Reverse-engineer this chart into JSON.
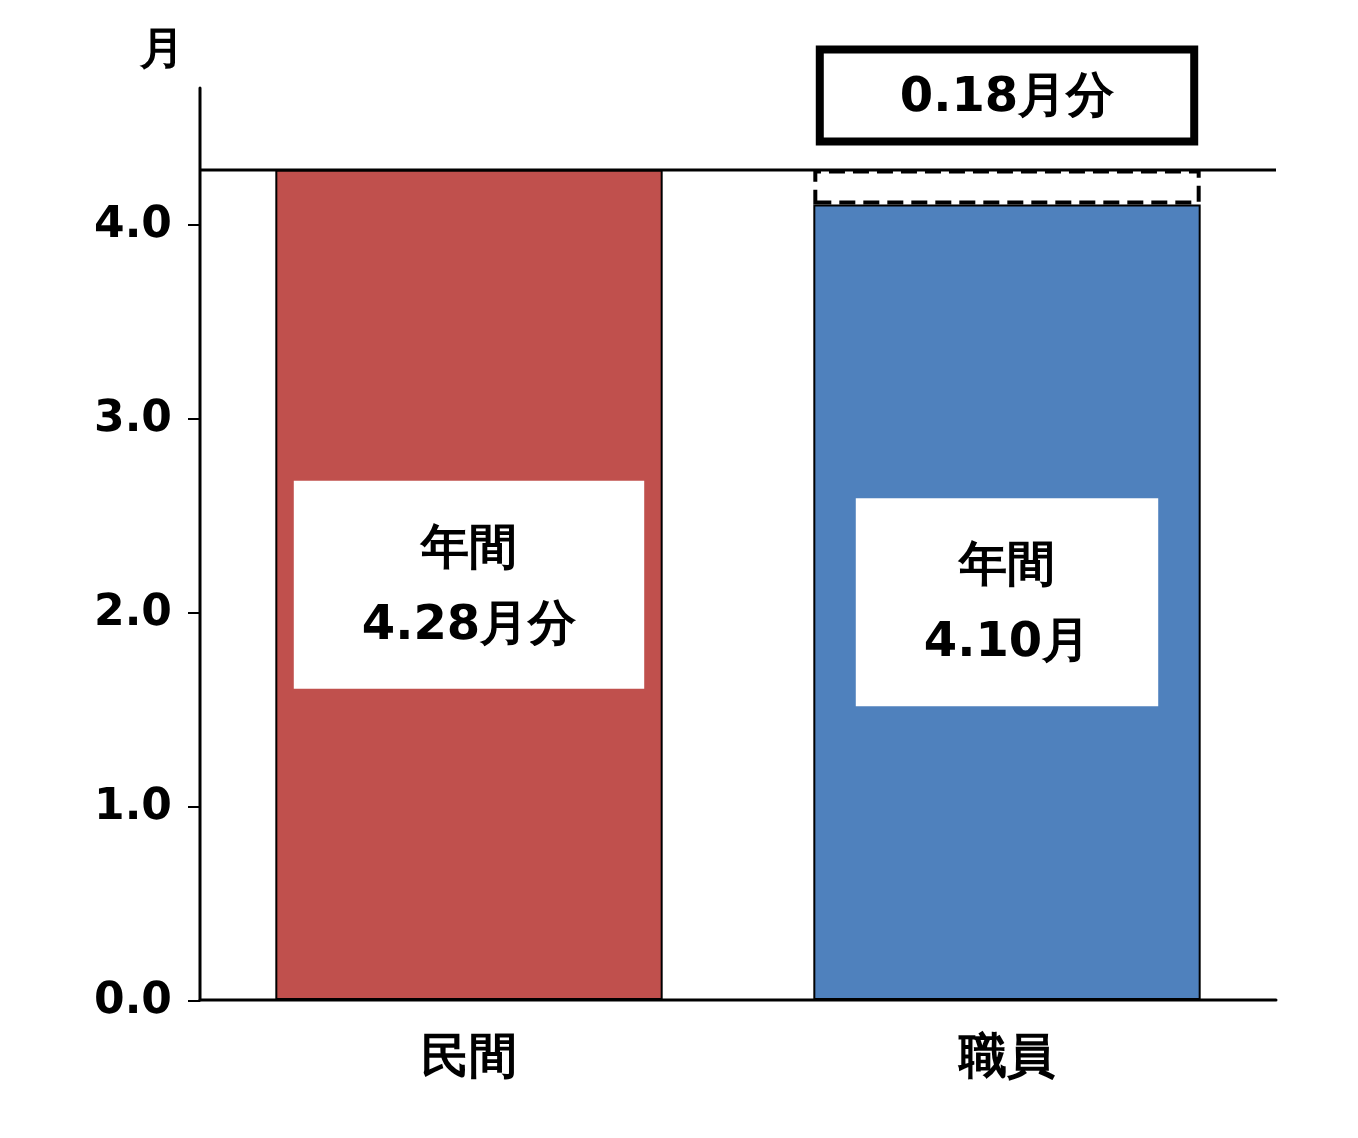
{
  "chart_data": {
    "type": "bar",
    "stacked": true,
    "ylabel": "月",
    "categories": [
      "民間",
      "職員"
    ],
    "series": [
      {
        "colors": [
          "#c0504d",
          "#4f81bd"
        ],
        "values": [
          4.28,
          4.1
        ],
        "value_labels": [
          "年間\n4.28月分",
          "年間\n4.10月"
        ]
      },
      {
        "color": "#ffffff",
        "line_style": "dashed",
        "values": [
          null,
          0.18
        ],
        "value_labels": [
          null,
          "0.18月分"
        ]
      }
    ],
    "ylim": [
      0,
      4.7
    ],
    "yticks": [
      {
        "value": 0,
        "label": "0.0"
      },
      {
        "value": 1,
        "label": "1.0"
      },
      {
        "value": 2,
        "label": "2.0"
      },
      {
        "value": 3,
        "label": "3.0"
      },
      {
        "value": 4,
        "label": "4.0"
      }
    ],
    "ref_lines": [
      {
        "axis": "y",
        "value": 4.28,
        "color": "#000000"
      }
    ]
  }
}
